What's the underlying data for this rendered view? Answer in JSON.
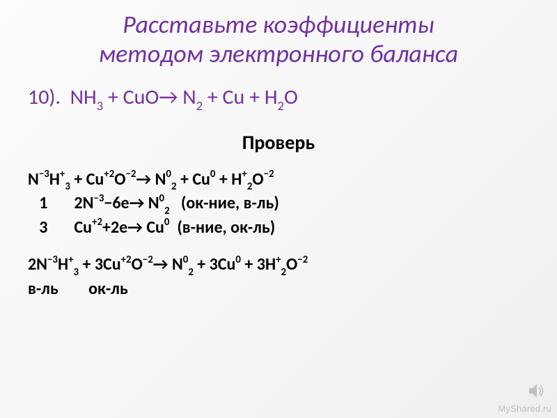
{
  "title": {
    "line1": "Расставьте коэффициенты",
    "line2": "методом электронного баланса",
    "fontsize": 36,
    "color": "#7030a0"
  },
  "problem": {
    "number": "10).",
    "text_html": "NH<sub>3</sub> + CuO→ N<sub>2</sub> + Cu + H<sub>2</sub>O",
    "fontsize": 30,
    "color": "#7030a0"
  },
  "check": {
    "label": "Проверь",
    "fontsize": 28,
    "color": "#000000"
  },
  "solution": {
    "fontsize": 24,
    "color": "#000000",
    "line1_html": "N<sup>−</sup><sup>3</sup>H<sup>+</sup><sub>3</sub> + Cu<sup>+</sup><sup>2</sup>O<sup>−</sup><sup>2</sup>→ N<sup>0</sup><sub>2</sub> + Cu<sup>0</sup> + H<sup>+</sup><sub>2</sub>O<sup>−</sup><sup>2</sup>",
    "line2_html": "&nbsp;&nbsp;&nbsp;1&nbsp;&nbsp;&nbsp;&nbsp;&nbsp;&nbsp;&nbsp;2N<sup>−</sup><sup>3</sup>−6e→ N<sup>0</sup><sub>2</sub>&nbsp;&nbsp;&nbsp;(ок-ние, в-ль)",
    "line3_html": "&nbsp;&nbsp;&nbsp;3&nbsp;&nbsp;&nbsp;&nbsp;&nbsp;&nbsp;&nbsp;Cu<sup>+</sup><sup>2</sup>+2e→ Cu<sup>0</sup>&nbsp;&nbsp;(в-ние, ок-ль)",
    "line4_html": "2N<sup>−</sup><sup>3</sup>H<sup>+</sup><sub>3</sub> + 3Cu<sup>+</sup><sup>2</sup>O<sup>−</sup><sup>2</sup>→ N<sup>0</sup><sub>2</sub> + 3Cu<sup>0</sup> + 3H<sup>+</sup><sub>2</sub>O<sup>−</sup><sup>2</sup>",
    "line5_html": "в-ль&nbsp;&nbsp;&nbsp;&nbsp;&nbsp;&nbsp;&nbsp;&nbsp;ок-ль"
  },
  "watermark": {
    "text": "MyShared.ru",
    "color": "#bfbfbf"
  },
  "speaker_icon_color": "#808080",
  "background": {
    "gradient_from": "#fdfdfd",
    "gradient_to": "#efeff0"
  }
}
